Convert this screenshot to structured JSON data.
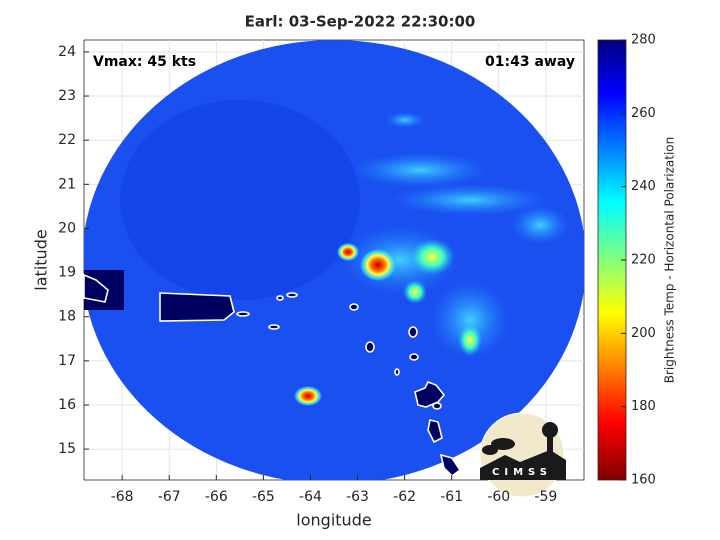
{
  "map": {
    "title": "Earl: 03-Sep-2022 22:30:00",
    "annotations": {
      "vmax": "Vmax: 45 kts",
      "away": "01:43 away"
    },
    "xlabel": "longitude",
    "ylabel": "latitude",
    "xlim": [
      -68.81,
      -58.19
    ],
    "ylim": [
      14.3,
      24.27
    ],
    "xticks": [
      -68,
      -67,
      -66,
      -65,
      -64,
      -63,
      -62,
      -61,
      -60,
      -59
    ],
    "yticks": [
      15,
      16,
      17,
      18,
      19,
      20,
      21,
      22,
      23,
      24
    ],
    "grid": true,
    "colorbar": {
      "label": "Brightness Temp - Horizontal Polarization",
      "lim": [
        160,
        280
      ],
      "ticks": [
        160,
        180,
        200,
        220,
        240,
        260,
        280
      ]
    },
    "logo": "CIMSS"
  }
}
